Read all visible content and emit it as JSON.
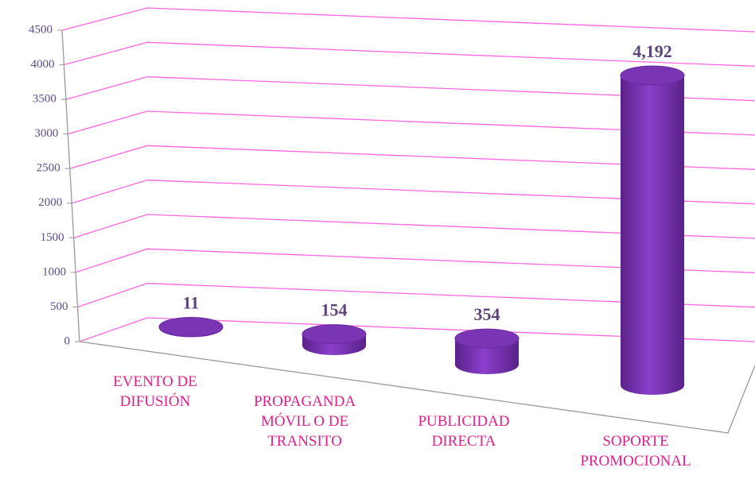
{
  "chart_data": {
    "type": "bar3d",
    "categories": [
      "EVENTO DE DIFUSIÓN",
      "PROPAGANDA MÓVIL O DE TRANSITO",
      "PUBLICIDAD DIRECTA",
      "SOPORTE PROMOCIONAL"
    ],
    "values": [
      11,
      154,
      354,
      4192
    ],
    "value_labels": [
      "11",
      "154",
      "354",
      "4,192"
    ],
    "color": "#7030a0",
    "ylim": [
      0,
      4500
    ],
    "yticks": [
      0,
      500,
      1000,
      1500,
      2000,
      2500,
      3000,
      3500,
      4000,
      4500
    ],
    "grid": true
  }
}
